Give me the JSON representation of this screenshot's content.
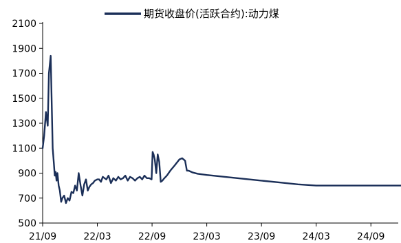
{
  "chart_data": {
    "type": "line",
    "title": "",
    "xlabel": "",
    "ylabel": "",
    "legend": {
      "position": "top-center"
    },
    "grid": false,
    "ylim": [
      500,
      2100
    ],
    "yticks": [
      500,
      700,
      900,
      1100,
      1300,
      1500,
      1700,
      1900,
      2100
    ],
    "xlim": [
      "2021-09",
      "2024-12"
    ],
    "xticks": [
      "21/09",
      "22/03",
      "22/09",
      "23/03",
      "23/09",
      "24/03",
      "24/09"
    ],
    "colors": {
      "series": "#1b2f58",
      "axis": "#000000"
    },
    "series": [
      {
        "name": "期货收盘价(活跃合约):动力煤",
        "x": [
          "2021-09-01",
          "2021-09-06",
          "2021-09-12",
          "2021-09-18",
          "2021-09-22",
          "2021-09-28",
          "2021-10-04",
          "2021-10-08",
          "2021-10-11",
          "2021-10-14",
          "2021-10-17",
          "2021-10-20",
          "2021-10-24",
          "2021-10-28",
          "2021-11-02",
          "2021-11-06",
          "2021-11-12",
          "2021-11-18",
          "2021-11-24",
          "2021-11-30",
          "2021-12-06",
          "2021-12-12",
          "2021-12-18",
          "2021-12-24",
          "2021-12-30",
          "2022-01-06",
          "2022-01-12",
          "2022-01-18",
          "2022-01-24",
          "2022-01-30",
          "2022-02-05",
          "2022-02-11",
          "2022-02-17",
          "2022-02-23",
          "2022-03-01",
          "2022-03-07",
          "2022-03-13",
          "2022-03-19",
          "2022-03-25",
          "2022-03-31",
          "2022-04-08",
          "2022-04-16",
          "2022-04-24",
          "2022-05-02",
          "2022-05-10",
          "2022-05-18",
          "2022-05-26",
          "2022-06-03",
          "2022-06-11",
          "2022-06-19",
          "2022-06-27",
          "2022-07-05",
          "2022-07-13",
          "2022-07-21",
          "2022-07-29",
          "2022-08-06",
          "2022-08-14",
          "2022-08-22",
          "2022-08-30",
          "2022-09-03",
          "2022-09-06",
          "2022-09-10",
          "2022-09-15",
          "2022-09-20",
          "2022-09-25",
          "2022-09-30",
          "2022-10-05",
          "2022-10-10",
          "2022-10-20",
          "2022-11-01",
          "2022-11-15",
          "2022-12-01",
          "2022-12-10",
          "2022-12-20",
          "2022-12-26",
          "2023-01-01",
          "2023-01-15",
          "2023-02-01",
          "2023-03-01",
          "2023-05-01",
          "2023-07-01",
          "2023-09-01",
          "2023-11-01",
          "2024-01-01",
          "2024-03-01",
          "2024-06-01",
          "2024-09-01",
          "2024-12-31"
        ],
        "values": [
          1100,
          1200,
          1390,
          1280,
          1700,
          1840,
          1100,
          980,
          880,
          910,
          840,
          900,
          800,
          760,
          670,
          700,
          720,
          660,
          700,
          680,
          750,
          740,
          800,
          760,
          900,
          800,
          720,
          810,
          850,
          760,
          790,
          810,
          820,
          840,
          850,
          850,
          830,
          870,
          860,
          850,
          880,
          820,
          860,
          840,
          870,
          850,
          860,
          880,
          840,
          870,
          860,
          840,
          860,
          870,
          850,
          880,
          860,
          860,
          850,
          1070,
          1050,
          1010,
          900,
          1050,
          990,
          830,
          840,
          855,
          880,
          920,
          960,
          1010,
          1020,
          1000,
          920,
          920,
          905,
          895,
          885,
          870,
          855,
          840,
          825,
          810,
          800,
          800,
          800,
          800
        ]
      }
    ]
  }
}
